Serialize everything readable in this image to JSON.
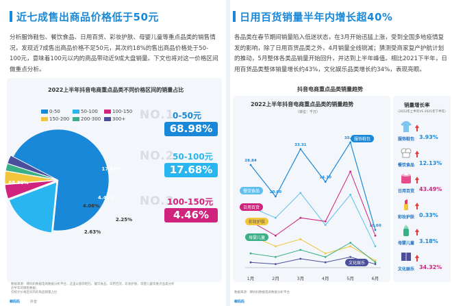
{
  "left": {
    "title": "近七成售出商品价格低于50元",
    "paragraph": "分析服饰鞋包、餐饮食品、日用百货、彩妆护肤、母婴儿童等重点品类的销售情况，发现近7成售出商品价格不足50元，其次约18%的售出商品价格处于50-100元，意味着100元以内的商品带动近9成大盘销量。下文也将对这一价格区间做重点分析。",
    "footnote": "数据来源：蝉妈妈数据电商数据分析平台，这里以服饰鞋包、餐饮食品、日用百货、彩妆护肤、母婴儿童等重点品类分析近半年的销售数据；",
    "footnote2": "仅统计价格区间内的商品销量占比",
    "footer": "蝉妈妈",
    "footer2": "抖音"
  },
  "right": {
    "title": "日用百货销量半年内增长超40%",
    "paragraph": "各品类在春节期间销量陷入低迷状态，在3月开始迅猛上涨，受到全国多地疫情复发的影响，除了日用百货品类之外，4月销量全线锐减；猜测受商家复产护航计划的推动，5月整体各类品销量开始回升，并达到上半年峰值。相比2021下半年，日用百货品类整体销量增长约43%，文化娱乐品类增长约34%，表现亮眼。",
    "footnote": "数据来源：蝉妈妈数据电商数据分析平台",
    "footer": "蝉妈妈"
  },
  "ranks": [
    {
      "no": "NO.1",
      "range": "0-50元",
      "pct": "68.98%",
      "color": "#1a88d8"
    },
    {
      "no": "NO.2",
      "range": "50-100元",
      "pct": "17.68%",
      "color": "#29b6f0"
    },
    {
      "no": "NO.3",
      "range": "100-150元",
      "pct": "4.46%",
      "color": "#d0237e"
    }
  ],
  "chart_data": [
    {
      "type": "pie",
      "title": "2022上半年抖音电商重点品类不同价格区间的销量占比",
      "categories": [
        "0-50",
        "50-100",
        "100-150",
        "150-200",
        "200-300",
        "300+"
      ],
      "values": [
        68.98,
        17.68,
        4.46,
        4.06,
        2.25,
        2.63
      ],
      "labels": [
        "68.98%",
        "17.68%",
        "4.46%",
        "4.06%",
        "2.25%",
        "2.63%"
      ],
      "colors": [
        "#1a88d8",
        "#29b6f0",
        "#d0237e",
        "#f2c53d",
        "#3aaf85",
        "#4a4e9c"
      ],
      "legend": "top"
    },
    {
      "type": "line",
      "title": "2022上半年抖音电商重点品类的销量趋势",
      "panel_title": "抖音电商重点品类销量趋势",
      "unit": "（单位：千万）",
      "x": [
        "1月",
        "2月",
        "3月",
        "4月",
        "5月",
        "6月"
      ],
      "ylim": [
        0,
        40
      ],
      "series": [
        {
          "name": "服饰鞋包",
          "values": [
            28.84,
            20.0,
            33.31,
            24.1,
            35.21,
            10.6
          ],
          "color": "#1a88d8",
          "labels": [
            "28.84",
            "20.00",
            "33.31",
            "24.10",
            "35.21",
            "10.60"
          ]
        },
        {
          "name": "餐饮食品",
          "values": [
            17.0,
            14.0,
            21.0,
            12.0,
            20.5,
            6.0
          ],
          "color": "#5ec0f0"
        },
        {
          "name": "日用百货",
          "values": [
            13.0,
            9.0,
            14.0,
            13.0,
            27.0,
            9.0
          ],
          "color": "#d0237e"
        },
        {
          "name": "彩妆护肤",
          "values": [
            9.0,
            6.0,
            8.0,
            4.0,
            6.0,
            2.0
          ],
          "color": "#f2c53d"
        },
        {
          "name": "母婴儿童",
          "values": [
            4.0,
            3.0,
            5.0,
            3.0,
            7.0,
            1.5
          ],
          "color": "#3aaf85"
        },
        {
          "name": "文化娱乐",
          "values": [
            1.5,
            1.0,
            2.5,
            1.5,
            3.0,
            1.0
          ],
          "color": "#4a4e9c"
        }
      ]
    }
  ],
  "growth": {
    "title": "销量增长率",
    "subtitle": "（2022年上半年VS 2021年下半年）",
    "items": [
      {
        "cat": "服饰鞋包",
        "val": "3.93%",
        "icon": "shirt-icon"
      },
      {
        "cat": "餐饮食品",
        "val": "12.13%",
        "icon": "chef-hat-icon"
      },
      {
        "cat": "日用百货",
        "val": "43.49%",
        "icon": "tissue-roll-icon"
      },
      {
        "cat": "彩妆护肤",
        "val": "0.33%",
        "icon": "lipstick-icon"
      },
      {
        "cat": "母婴儿童",
        "val": "3.18%",
        "icon": "baby-bottle-icon"
      },
      {
        "cat": "文化娱乐",
        "val": "34.32%",
        "icon": "book-icon"
      }
    ]
  }
}
